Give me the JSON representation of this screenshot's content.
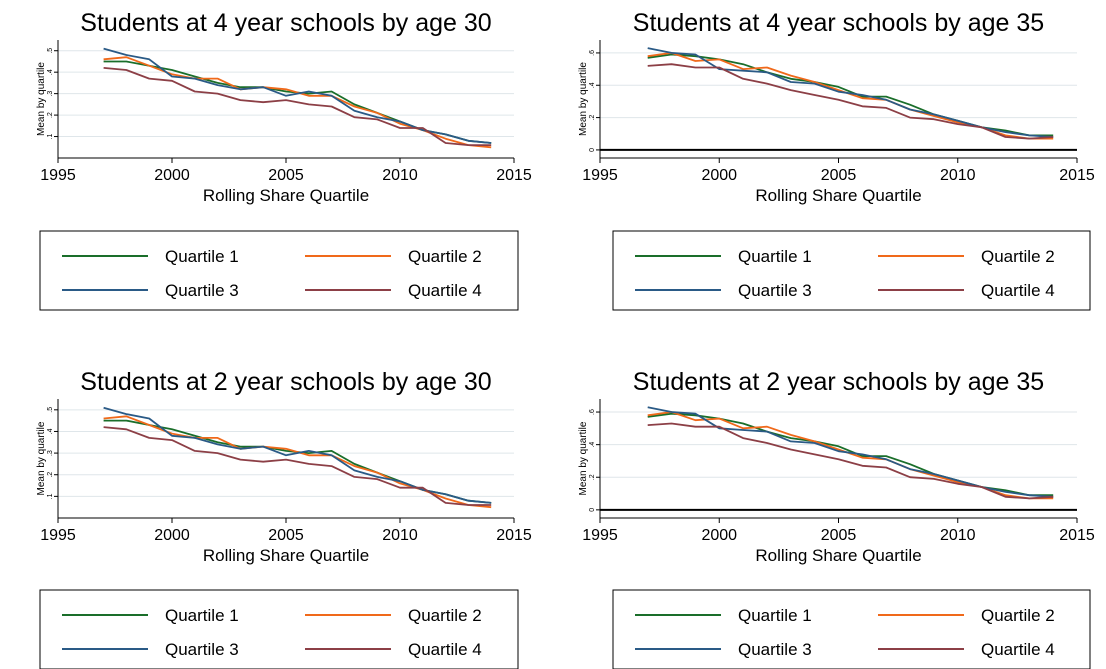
{
  "colors": {
    "Quartile 1": "#1a6e2a",
    "Quartile 2": "#f0691a",
    "Quartile 3": "#2a5a86",
    "Quartile 4": "#8c3f46",
    "grid": "#dfe6ea",
    "zero_line": "#000000"
  },
  "chart_data": [
    {
      "type": "line",
      "title": "Students at 4 year schools by age 30",
      "xlabel": "Rolling Share Quartile",
      "ylabel": "Mean by quartile",
      "xlim": [
        1995,
        2015
      ],
      "ylim": [
        0.0,
        0.55
      ],
      "xticks": [
        1995,
        2000,
        2005,
        2010,
        2015
      ],
      "yticks": [
        0.1,
        0.2,
        0.3,
        0.4,
        0.5
      ],
      "ytick_labels": [
        ".1",
        ".2",
        ".3",
        ".4",
        ".5"
      ],
      "grid": true,
      "zero_line": false,
      "legend_position": "bottom",
      "x": [
        1997,
        1998,
        1999,
        2000,
        2001,
        2002,
        2003,
        2004,
        2005,
        2006,
        2007,
        2008,
        2009,
        2010,
        2011,
        2012,
        2013,
        2014
      ],
      "series": [
        {
          "name": "Quartile 1",
          "values": [
            0.45,
            0.45,
            0.43,
            0.41,
            0.38,
            0.35,
            0.33,
            0.33,
            0.31,
            0.3,
            0.31,
            0.25,
            0.21,
            0.17,
            0.13,
            0.11,
            0.08,
            0.07
          ]
        },
        {
          "name": "Quartile 2",
          "values": [
            0.46,
            0.47,
            0.43,
            0.39,
            0.37,
            0.37,
            0.32,
            0.33,
            0.32,
            0.29,
            0.29,
            0.24,
            0.21,
            0.16,
            0.13,
            0.09,
            0.06,
            0.05
          ]
        },
        {
          "name": "Quartile 3",
          "values": [
            0.51,
            0.48,
            0.46,
            0.38,
            0.37,
            0.34,
            0.32,
            0.33,
            0.29,
            0.31,
            0.29,
            0.22,
            0.19,
            0.17,
            0.13,
            0.11,
            0.08,
            0.07
          ]
        },
        {
          "name": "Quartile 4",
          "values": [
            0.42,
            0.41,
            0.37,
            0.36,
            0.31,
            0.3,
            0.27,
            0.26,
            0.27,
            0.25,
            0.24,
            0.19,
            0.18,
            0.14,
            0.14,
            0.07,
            0.06,
            0.06
          ]
        }
      ]
    },
    {
      "type": "line",
      "title": "Students at 4 year schools by age 35",
      "xlabel": "Rolling Share Quartile",
      "ylabel": "Mean by quartile",
      "xlim": [
        1995,
        2015
      ],
      "ylim": [
        -0.05,
        0.68
      ],
      "xticks": [
        1995,
        2000,
        2005,
        2010,
        2015
      ],
      "yticks": [
        0,
        0.2,
        0.4,
        0.6
      ],
      "ytick_labels": [
        "0",
        ".2",
        ".4",
        ".6"
      ],
      "grid": true,
      "zero_line": true,
      "legend_position": "bottom",
      "x": [
        1997,
        1998,
        1999,
        2000,
        2001,
        2002,
        2003,
        2004,
        2005,
        2006,
        2007,
        2008,
        2009,
        2010,
        2011,
        2012,
        2013,
        2014
      ],
      "series": [
        {
          "name": "Quartile 1",
          "values": [
            0.57,
            0.59,
            0.58,
            0.56,
            0.53,
            0.48,
            0.44,
            0.42,
            0.39,
            0.33,
            0.33,
            0.28,
            0.22,
            0.18,
            0.14,
            0.12,
            0.09,
            0.09
          ]
        },
        {
          "name": "Quartile 2",
          "values": [
            0.58,
            0.6,
            0.55,
            0.56,
            0.5,
            0.51,
            0.46,
            0.42,
            0.37,
            0.32,
            0.31,
            0.25,
            0.21,
            0.17,
            0.14,
            0.09,
            0.07,
            0.07
          ]
        },
        {
          "name": "Quartile 3",
          "values": [
            0.63,
            0.6,
            0.59,
            0.5,
            0.49,
            0.48,
            0.42,
            0.41,
            0.36,
            0.34,
            0.31,
            0.25,
            0.22,
            0.18,
            0.14,
            0.11,
            0.09,
            0.08
          ]
        },
        {
          "name": "Quartile 4",
          "values": [
            0.52,
            0.53,
            0.51,
            0.51,
            0.44,
            0.41,
            0.37,
            0.34,
            0.31,
            0.27,
            0.26,
            0.2,
            0.19,
            0.16,
            0.14,
            0.08,
            0.07,
            0.08
          ]
        }
      ]
    },
    {
      "type": "line",
      "title": "Students at 2 year schools by age 30",
      "xlabel": "Rolling Share Quartile",
      "ylabel": "Mean by quartile",
      "xlim": [
        1995,
        2015
      ],
      "ylim": [
        0.0,
        0.55
      ],
      "xticks": [
        1995,
        2000,
        2005,
        2010,
        2015
      ],
      "yticks": [
        0.1,
        0.2,
        0.3,
        0.4,
        0.5
      ],
      "ytick_labels": [
        ".1",
        ".2",
        ".3",
        ".4",
        ".5"
      ],
      "grid": true,
      "zero_line": false,
      "legend_position": "bottom",
      "x": [
        1997,
        1998,
        1999,
        2000,
        2001,
        2002,
        2003,
        2004,
        2005,
        2006,
        2007,
        2008,
        2009,
        2010,
        2011,
        2012,
        2013,
        2014
      ],
      "series": [
        {
          "name": "Quartile 1",
          "values": [
            0.45,
            0.45,
            0.43,
            0.41,
            0.38,
            0.35,
            0.33,
            0.33,
            0.31,
            0.3,
            0.31,
            0.25,
            0.21,
            0.17,
            0.13,
            0.11,
            0.08,
            0.07
          ]
        },
        {
          "name": "Quartile 2",
          "values": [
            0.46,
            0.47,
            0.43,
            0.39,
            0.37,
            0.37,
            0.32,
            0.33,
            0.32,
            0.29,
            0.29,
            0.24,
            0.21,
            0.16,
            0.13,
            0.09,
            0.06,
            0.05
          ]
        },
        {
          "name": "Quartile 3",
          "values": [
            0.51,
            0.48,
            0.46,
            0.38,
            0.37,
            0.34,
            0.32,
            0.33,
            0.29,
            0.31,
            0.29,
            0.22,
            0.19,
            0.17,
            0.13,
            0.11,
            0.08,
            0.07
          ]
        },
        {
          "name": "Quartile 4",
          "values": [
            0.42,
            0.41,
            0.37,
            0.36,
            0.31,
            0.3,
            0.27,
            0.26,
            0.27,
            0.25,
            0.24,
            0.19,
            0.18,
            0.14,
            0.14,
            0.07,
            0.06,
            0.06
          ]
        }
      ]
    },
    {
      "type": "line",
      "title": "Students at 2 year schools by age 35",
      "xlabel": "Rolling Share Quartile",
      "ylabel": "Mean by quartile",
      "xlim": [
        1995,
        2015
      ],
      "ylim": [
        -0.05,
        0.68
      ],
      "xticks": [
        1995,
        2000,
        2005,
        2010,
        2015
      ],
      "yticks": [
        0,
        0.2,
        0.4,
        0.6
      ],
      "ytick_labels": [
        "0",
        ".2",
        ".4",
        ".6"
      ],
      "grid": true,
      "zero_line": true,
      "legend_position": "bottom",
      "x": [
        1997,
        1998,
        1999,
        2000,
        2001,
        2002,
        2003,
        2004,
        2005,
        2006,
        2007,
        2008,
        2009,
        2010,
        2011,
        2012,
        2013,
        2014
      ],
      "series": [
        {
          "name": "Quartile 1",
          "values": [
            0.57,
            0.59,
            0.58,
            0.56,
            0.53,
            0.48,
            0.44,
            0.42,
            0.39,
            0.33,
            0.33,
            0.28,
            0.22,
            0.18,
            0.14,
            0.12,
            0.09,
            0.09
          ]
        },
        {
          "name": "Quartile 2",
          "values": [
            0.58,
            0.6,
            0.55,
            0.56,
            0.5,
            0.51,
            0.46,
            0.42,
            0.37,
            0.32,
            0.31,
            0.25,
            0.21,
            0.17,
            0.14,
            0.09,
            0.07,
            0.07
          ]
        },
        {
          "name": "Quartile 3",
          "values": [
            0.63,
            0.6,
            0.59,
            0.5,
            0.49,
            0.48,
            0.42,
            0.41,
            0.36,
            0.34,
            0.31,
            0.25,
            0.22,
            0.18,
            0.14,
            0.11,
            0.09,
            0.08
          ]
        },
        {
          "name": "Quartile 4",
          "values": [
            0.52,
            0.53,
            0.51,
            0.51,
            0.44,
            0.41,
            0.37,
            0.34,
            0.31,
            0.27,
            0.26,
            0.2,
            0.19,
            0.16,
            0.14,
            0.08,
            0.07,
            0.08
          ]
        }
      ]
    }
  ]
}
